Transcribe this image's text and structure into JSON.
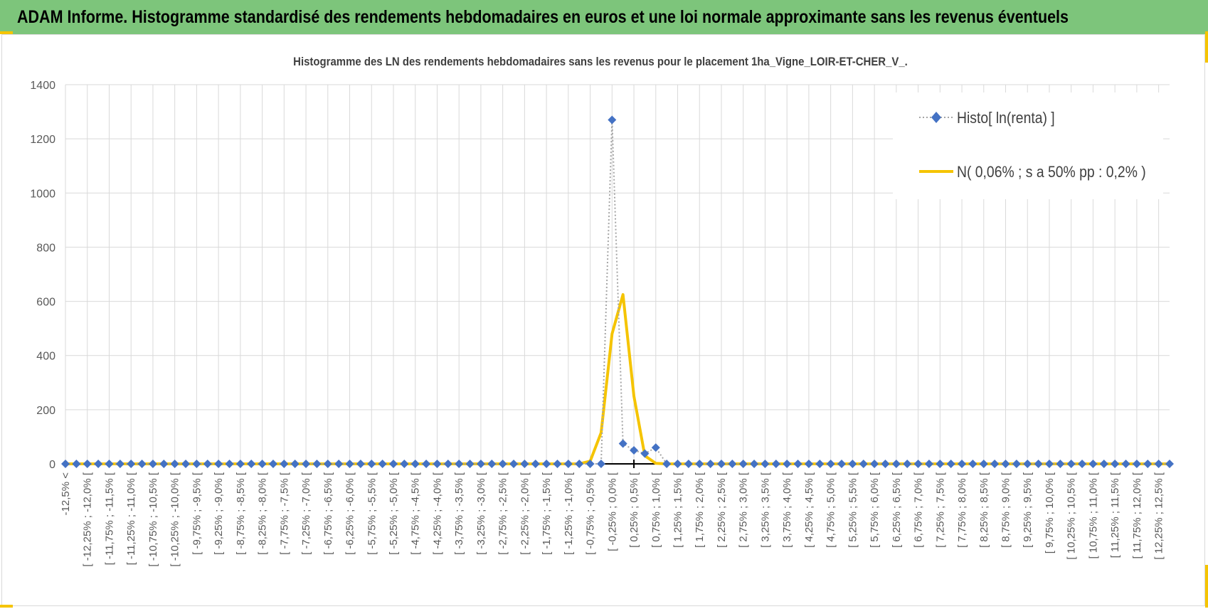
{
  "banner": {
    "title": "ADAM Informe. Histogramme standardisé des rendements hebdomadaires en euros et une loi normale approximante sans les revenus éventuels"
  },
  "colors": {
    "banner": "#7dc57b",
    "accent": "#f5c400",
    "histo": "#4472c4",
    "normal": "#f5c400",
    "grid": "#d9d9d9"
  },
  "chart_data": {
    "type": "line",
    "title": "Histogramme des LN des rendements hebdomadaires sans les revenus pour le placement 1ha_Vigne_LOIR-ET-CHER_V_.",
    "xlabel": "",
    "ylabel": "",
    "ylim": [
      0,
      1400
    ],
    "yticks": [
      0,
      200,
      400,
      600,
      800,
      1000,
      1200,
      1400
    ],
    "grid": true,
    "legend_position": "top-right",
    "categories": [
      "-12,5% <",
      "[ -12,25% ; -12,0% [",
      "[ -11,75% ; -11,5% [",
      "[ -11,25% ; -11,0% [",
      "[ -10,75% ; -10,5% [",
      "[ -10,25% ; -10,0% [",
      "[ -9,75% ; -9,5% [",
      "[ -9,25% ; -9,0% [",
      "[ -8,75% ; -8,5% [",
      "[ -8,25% ; -8,0% [",
      "[ -7,75% ; -7,5% [",
      "[ -7,25% ; -7,0% [",
      "[ -6,75% ; -6,5% [",
      "[ -6,25% ; -6,0% [",
      "[ -5,75% ; -5,5% [",
      "[ -5,25% ; -5,0% [",
      "[ -4,75% ; -4,5% [",
      "[ -4,25% ; -4,0% [",
      "[ -3,75% ; -3,5% [",
      "[ -3,25% ; -3,0% [",
      "[ -2,75% ; -2,5% [",
      "[ -2,25% ; -2,0% [",
      "[ -1,75% ; -1,5% [",
      "[ -1,25% ; -1,0% [",
      "[ -0,75% ; -0,5% [",
      "[ -0,25% ; 0,0% [",
      "[ 0,25% ; 0,5% [",
      "[ 0,75% ; 1,0% [",
      "[ 1,25% ; 1,5% [",
      "[ 1,75% ; 2,0% [",
      "[ 2,25% ; 2,5% [",
      "[ 2,75% ; 3,0% [",
      "[ 3,25% ; 3,5% [",
      "[ 3,75% ; 4,0% [",
      "[ 4,25% ; 4,5% [",
      "[ 4,75% ; 5,0% [",
      "[ 5,25% ; 5,5% [",
      "[ 5,75% ; 6,0% [",
      "[ 6,25% ; 6,5% [",
      "[ 6,75% ; 7,0% [",
      "[ 7,25% ; 7,5% [",
      "[ 7,75% ; 8,0% [",
      "[ 8,25% ; 8,5% [",
      "[ 8,75% ; 9,0% [",
      "[ 9,25% ; 9,5% [",
      "[ 9,75% ; 10,0% [",
      "[ 10,25% ; 10,5% [",
      "[ 10,75% ; 11,0% [",
      "[ 11,25% ; 11,5% [",
      "[ 11,75% ; 12,0% [",
      "[ 12,25% ; 12,5% ["
    ],
    "categories_shown_every": 2,
    "x_points": 102,
    "series": [
      {
        "name": "Histo[ ln(renta) ]",
        "style": "dotted-diamond",
        "points": [
          {
            "i": 49,
            "y": 0
          },
          {
            "i": 50,
            "y": 1270
          },
          {
            "i": 51,
            "y": 75
          },
          {
            "i": 52,
            "y": 50
          },
          {
            "i": 53,
            "y": 38
          },
          {
            "i": 54,
            "y": 60
          },
          {
            "i": 55,
            "y": 0
          }
        ],
        "default": 0
      },
      {
        "name": "N( 0,06% ; s a 50% pp : 0,2% )",
        "style": "line",
        "points": [
          {
            "i": 47,
            "y": 0
          },
          {
            "i": 48,
            "y": 10
          },
          {
            "i": 49,
            "y": 115
          },
          {
            "i": 50,
            "y": 480
          },
          {
            "i": 51,
            "y": 625
          },
          {
            "i": 52,
            "y": 250
          },
          {
            "i": 53,
            "y": 30
          },
          {
            "i": 54,
            "y": 2
          },
          {
            "i": 55,
            "y": 0
          }
        ],
        "default": 0
      }
    ]
  }
}
